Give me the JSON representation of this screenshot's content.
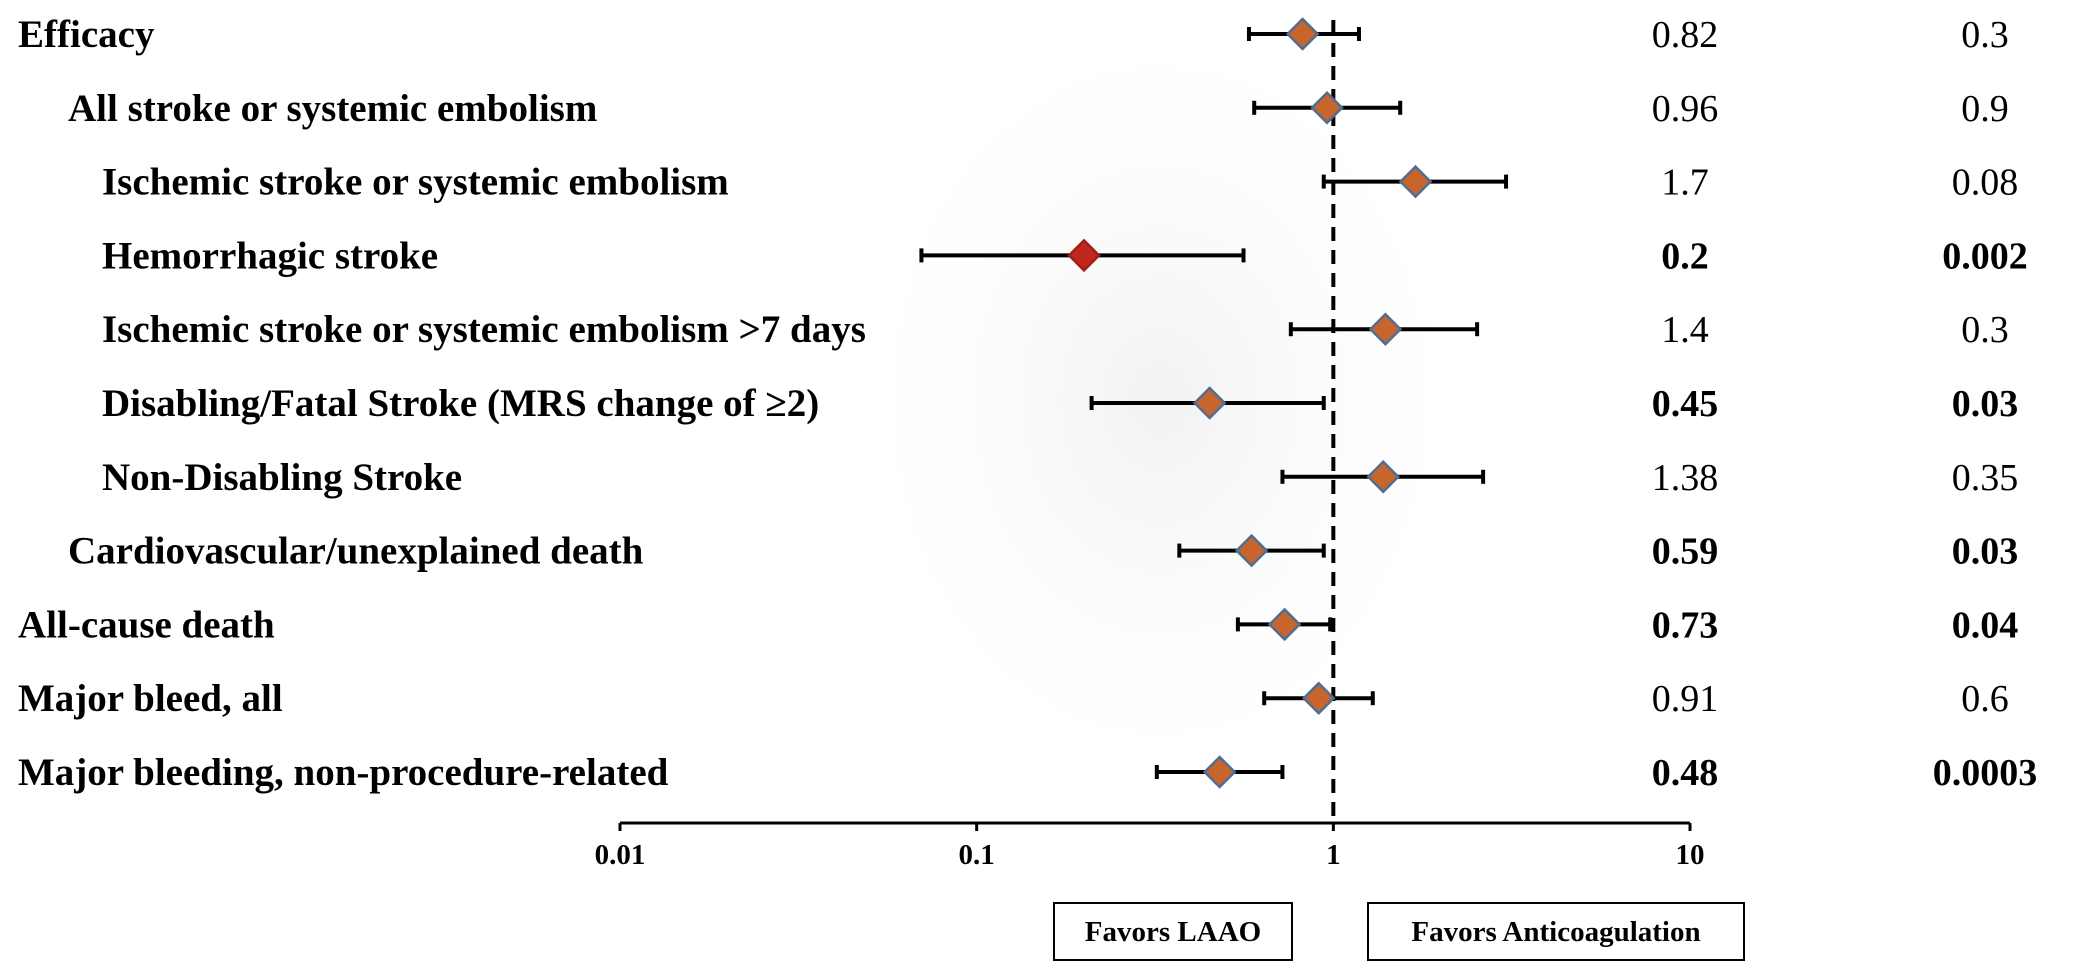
{
  "chart_data": {
    "type": "forest",
    "x_scale": "log",
    "xlim": [
      0.01,
      10
    ],
    "reference_line": 1,
    "ticks": [
      "0.01",
      "0.1",
      "1",
      "10"
    ],
    "tick_values": [
      0.01,
      0.1,
      1,
      10
    ],
    "favors_left": "Favors LAAO",
    "favors_right": "Favors Anticoagulation",
    "rows": [
      {
        "label": "Efficacy",
        "indent": 0,
        "estimate": 0.82,
        "lower": 0.58,
        "upper": 1.18,
        "ratio_text": "0.82",
        "p_text": "0.3",
        "bold": false,
        "color": "#c8652c"
      },
      {
        "label": "All stroke or systemic embolism",
        "indent": 1,
        "estimate": 0.96,
        "lower": 0.6,
        "upper": 1.54,
        "ratio_text": "0.96",
        "p_text": "0.9",
        "bold": false,
        "color": "#c8652c"
      },
      {
        "label": "Ischemic stroke or systemic embolism",
        "indent": 2,
        "estimate": 1.7,
        "lower": 0.94,
        "upper": 3.05,
        "ratio_text": "1.7",
        "p_text": "0.08",
        "bold": false,
        "color": "#c8652c"
      },
      {
        "label": "Hemorrhagic stroke",
        "indent": 2,
        "estimate": 0.2,
        "lower": 0.07,
        "upper": 0.56,
        "ratio_text": "0.2",
        "p_text": "0.002",
        "bold": true,
        "color": "#c0281f"
      },
      {
        "label": "Ischemic stroke or systemic embolism >7 days",
        "indent": 2,
        "estimate": 1.4,
        "lower": 0.76,
        "upper": 2.53,
        "ratio_text": "1.4",
        "p_text": "0.3",
        "bold": false,
        "color": "#c8652c"
      },
      {
        "label": "Disabling/Fatal Stroke (MRS change of ≥2)",
        "indent": 2,
        "estimate": 0.45,
        "lower": 0.21,
        "upper": 0.94,
        "ratio_text": "0.45",
        "p_text": "0.03",
        "bold": true,
        "color": "#c8652c"
      },
      {
        "label": "Non-Disabling Stroke",
        "indent": 2,
        "estimate": 1.38,
        "lower": 0.72,
        "upper": 2.63,
        "ratio_text": "1.38",
        "p_text": "0.35",
        "bold": false,
        "color": "#c8652c"
      },
      {
        "label": "Cardiovascular/unexplained death",
        "indent": 1,
        "estimate": 0.59,
        "lower": 0.37,
        "upper": 0.94,
        "ratio_text": "0.59",
        "p_text": "0.03",
        "bold": true,
        "color": "#c8652c"
      },
      {
        "label": "All-cause death",
        "indent": 0,
        "estimate": 0.73,
        "lower": 0.54,
        "upper": 0.98,
        "ratio_text": "0.73",
        "p_text": "0.04",
        "bold": true,
        "color": "#c8652c"
      },
      {
        "label": "Major bleed, all",
        "indent": 0,
        "estimate": 0.91,
        "lower": 0.64,
        "upper": 1.29,
        "ratio_text": "0.91",
        "p_text": "0.6",
        "bold": false,
        "color": "#c8652c"
      },
      {
        "label": "Major bleeding, non-procedure-related",
        "indent": 0,
        "estimate": 0.48,
        "lower": 0.32,
        "upper": 0.72,
        "ratio_text": "0.48",
        "p_text": "0.0003",
        "bold": true,
        "color": "#c8652c"
      }
    ]
  }
}
